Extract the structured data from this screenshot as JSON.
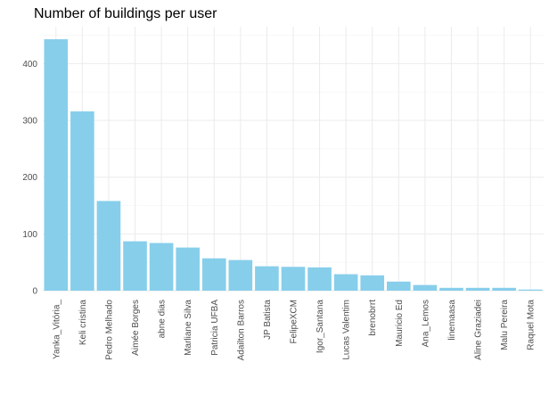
{
  "chart_data": {
    "type": "bar",
    "title": "Number of buildings per user",
    "xlabel": "",
    "ylabel": "",
    "categories": [
      "Yanka_Vitória_",
      "Keli cristina",
      "Pedro Melhado",
      "Aimée Borges",
      "abne dias",
      "Marliane Silva",
      "Patricia UFBA",
      "Adailton Barros",
      "JP Batista",
      "FelipeXCM",
      "Igor_Santana",
      "Lucas Valentim",
      "brenobrrt",
      "Mauricio Ed",
      "Ana_Lemos",
      "linemaasa",
      "Aline Graziadei",
      "Malu Pereira",
      "Raquel Mota"
    ],
    "values": [
      443,
      316,
      158,
      87,
      84,
      76,
      57,
      54,
      43,
      42,
      41,
      29,
      27,
      16,
      10,
      5,
      5,
      5,
      2
    ],
    "ylim": [
      0,
      465
    ],
    "yticks": [
      0,
      100,
      200,
      300,
      400
    ],
    "grid": true,
    "bar_color": "#87CEEB"
  }
}
